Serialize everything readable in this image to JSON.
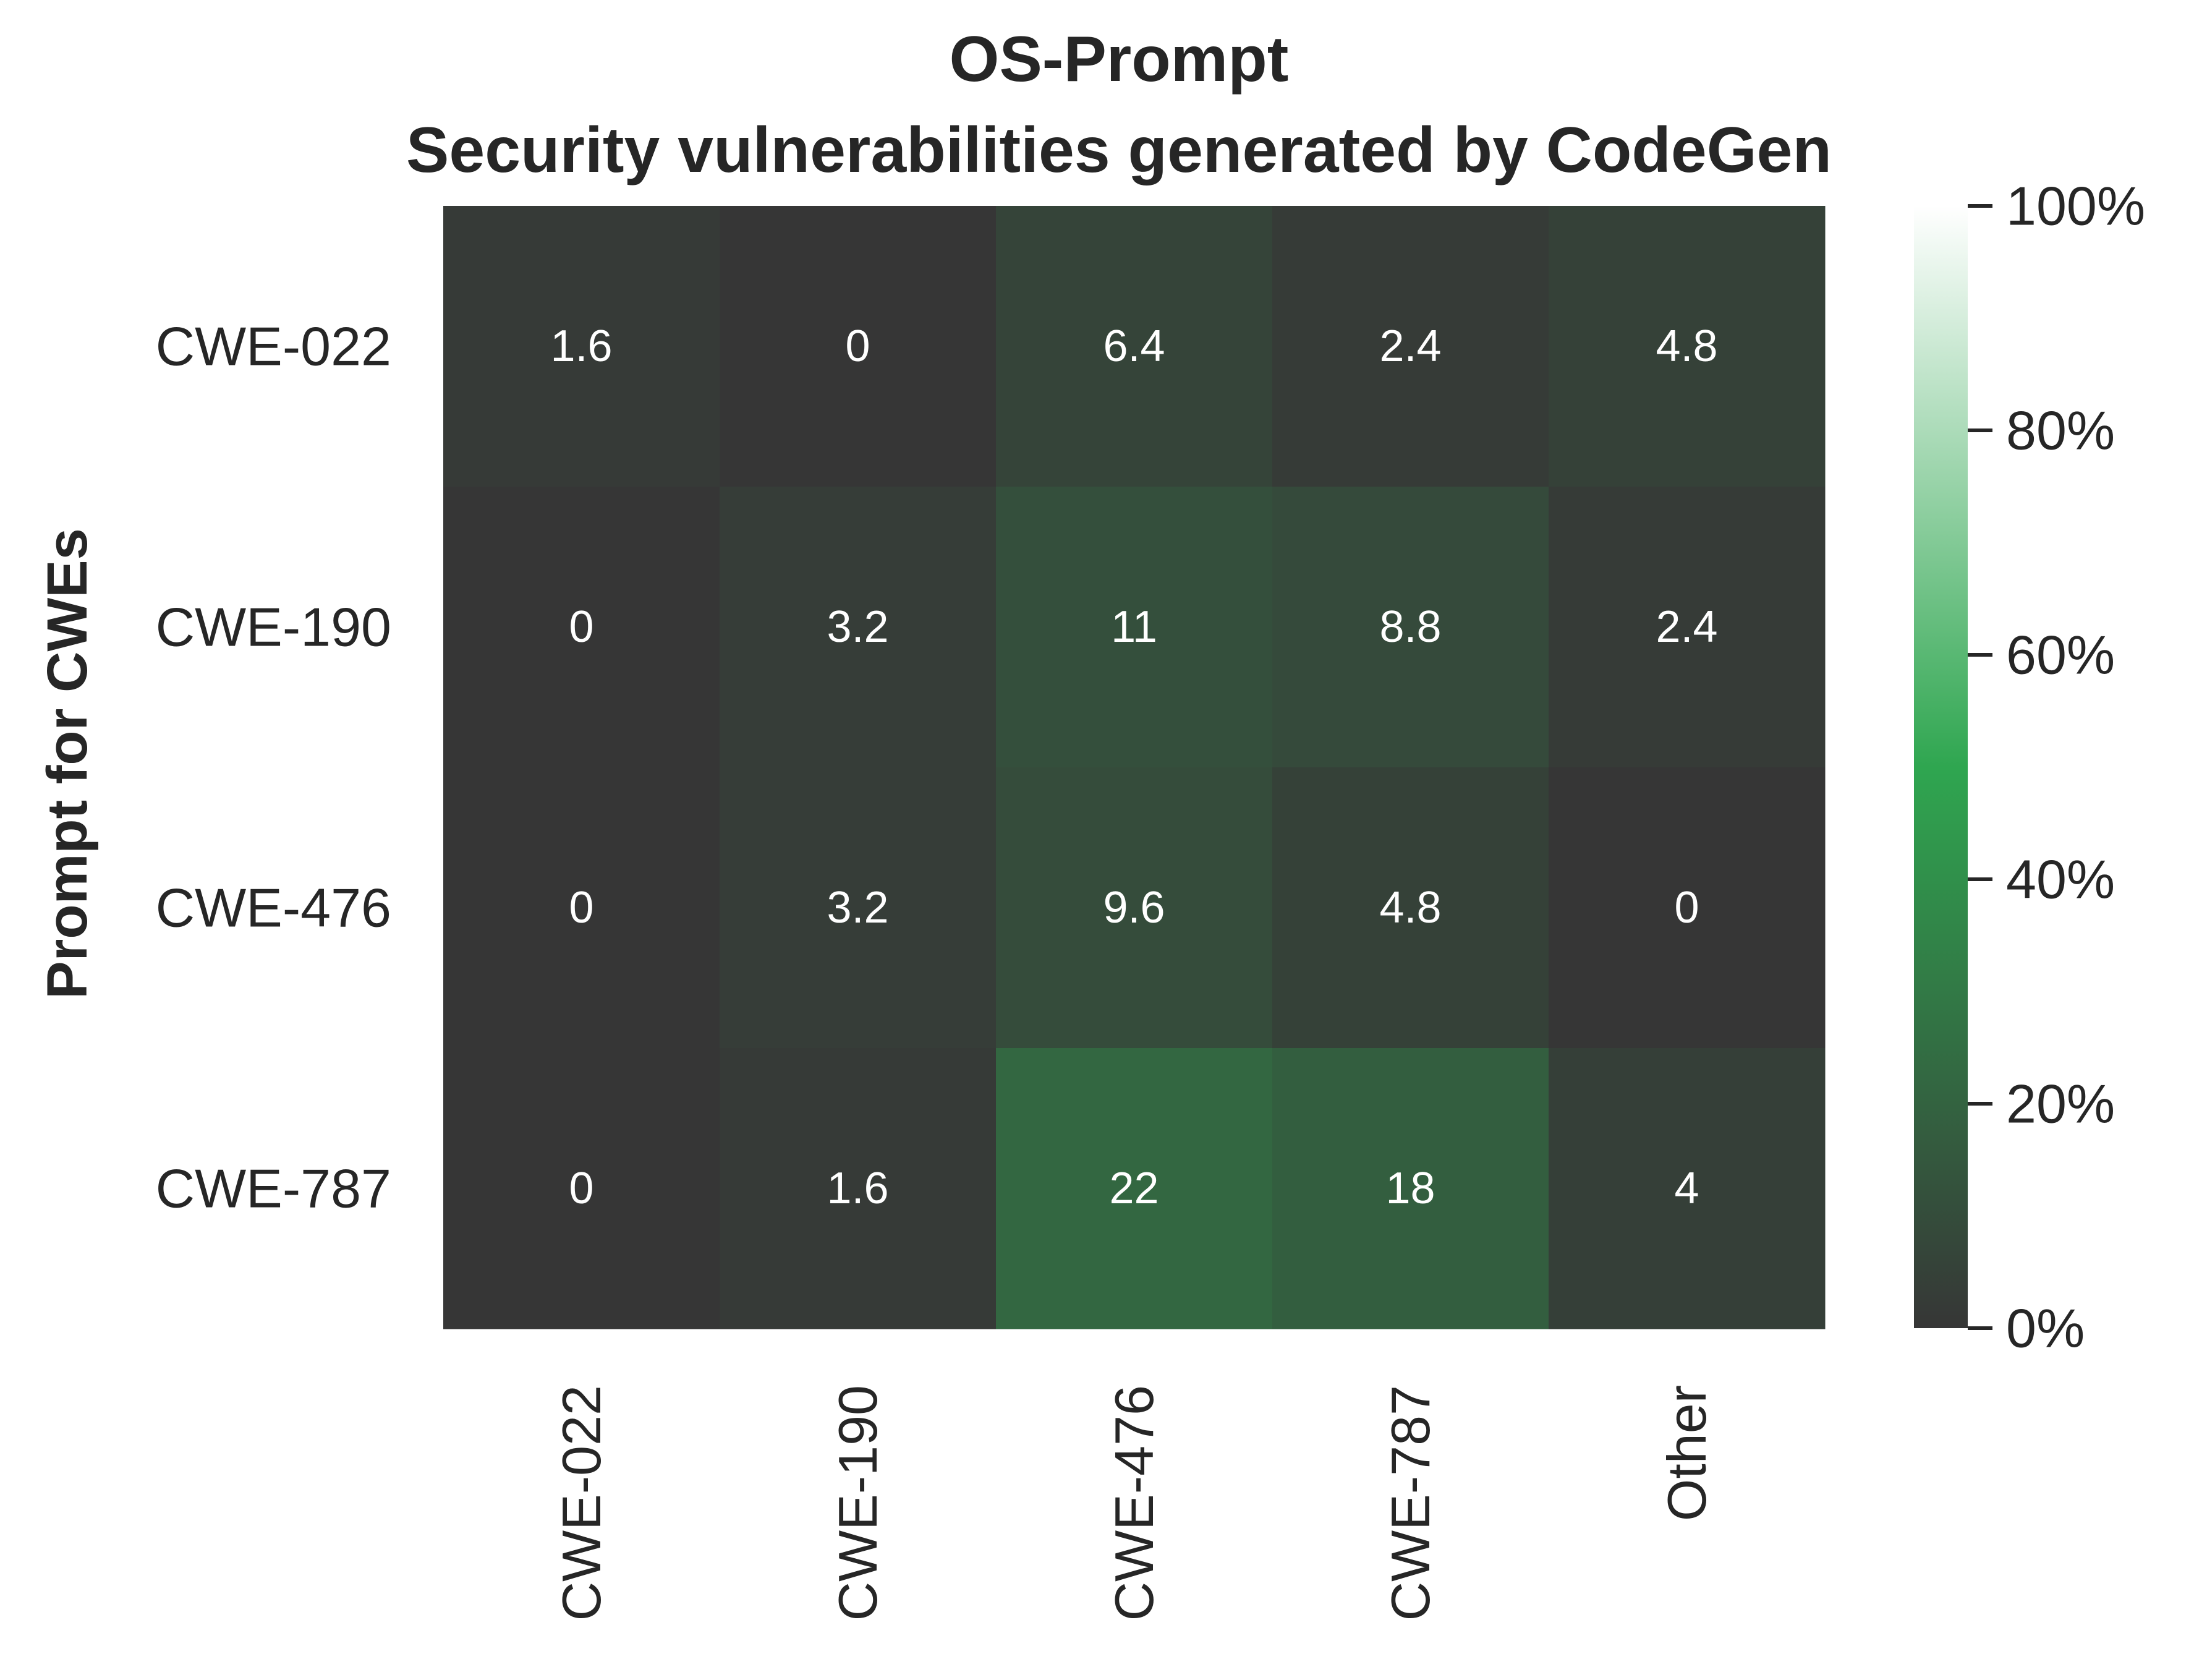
{
  "chart_data": {
    "type": "heatmap",
    "title": [
      "OS-Prompt",
      "Security vulnerabilities generated by CodeGen"
    ],
    "ylabel": "Prompt for CWEs",
    "xlabel": "",
    "rows": [
      "CWE-022",
      "CWE-190",
      "CWE-476",
      "CWE-787"
    ],
    "columns": [
      "CWE-022",
      "CWE-190",
      "CWE-476",
      "CWE-787",
      "Other"
    ],
    "values": [
      [
        1.6,
        0,
        6.4,
        2.4,
        4.8
      ],
      [
        0,
        3.2,
        11,
        8.8,
        2.4
      ],
      [
        0,
        3.2,
        9.6,
        4.8,
        0
      ],
      [
        0,
        1.6,
        22,
        18,
        4
      ]
    ],
    "annotations": [
      [
        "1.6",
        "0",
        "6.4",
        "2.4",
        "4.8"
      ],
      [
        "0",
        "3.2",
        "11",
        "8.8",
        "2.4"
      ],
      [
        "0",
        "3.2",
        "9.6",
        "4.8",
        "0"
      ],
      [
        "0",
        "1.6",
        "22",
        "18",
        "4"
      ]
    ],
    "colorbar": {
      "range": [
        0,
        100
      ],
      "ticks": [
        0,
        20,
        40,
        60,
        80,
        100
      ],
      "tick_labels": [
        "0%",
        "20%",
        "40%",
        "60%",
        "80%",
        "100%"
      ]
    },
    "colormap": [
      "#363636",
      "#2fa650",
      "#ffffff"
    ]
  }
}
